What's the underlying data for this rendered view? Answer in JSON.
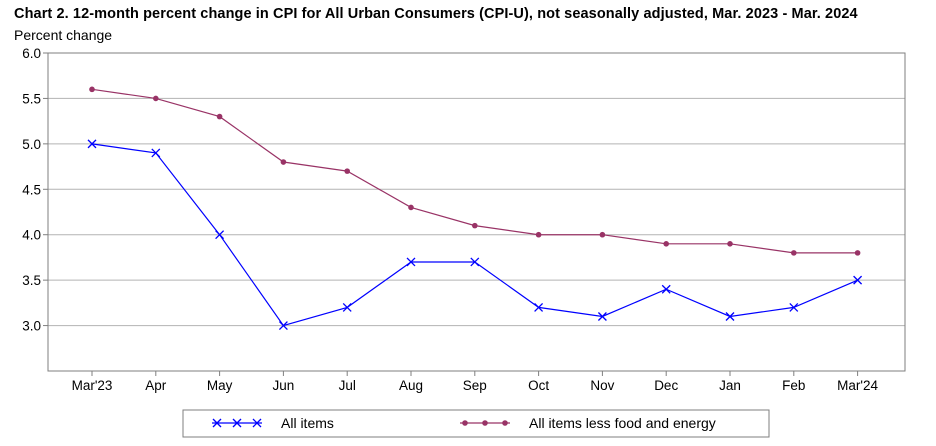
{
  "title": "Chart 2. 12-month percent change in CPI for All Urban Consumers (CPI-U), not seasonally adjusted, Mar. 2023 - Mar. 2024",
  "ylabel": "Percent change",
  "chart_data": {
    "type": "line",
    "title": "Chart 2. 12-month percent change in CPI for All Urban Consumers (CPI-U), not seasonally adjusted, Mar. 2023 - Mar. 2024",
    "xlabel": "",
    "ylabel": "Percent change",
    "categories": [
      "Mar'23",
      "Apr",
      "May",
      "Jun",
      "Jul",
      "Aug",
      "Sep",
      "Oct",
      "Nov",
      "Dec",
      "Jan",
      "Feb",
      "Mar'24"
    ],
    "ylim": [
      2.5,
      6.0
    ],
    "yticks": [
      "6.0",
      "5.5",
      "5.0",
      "4.5",
      "4.0",
      "3.5",
      "3.0"
    ],
    "grid": true,
    "legend_position": "bottom",
    "series": [
      {
        "name": "All items",
        "color": "#0000ff",
        "marker": "x",
        "values": [
          5.0,
          4.9,
          4.0,
          3.0,
          3.2,
          3.7,
          3.7,
          3.2,
          3.1,
          3.4,
          3.1,
          3.2,
          3.5
        ]
      },
      {
        "name": "All items less food and energy",
        "color": "#993366",
        "marker": "circle",
        "values": [
          5.6,
          5.5,
          5.3,
          4.8,
          4.7,
          4.3,
          4.1,
          4.0,
          4.0,
          3.9,
          3.9,
          3.8,
          3.8
        ]
      }
    ]
  }
}
